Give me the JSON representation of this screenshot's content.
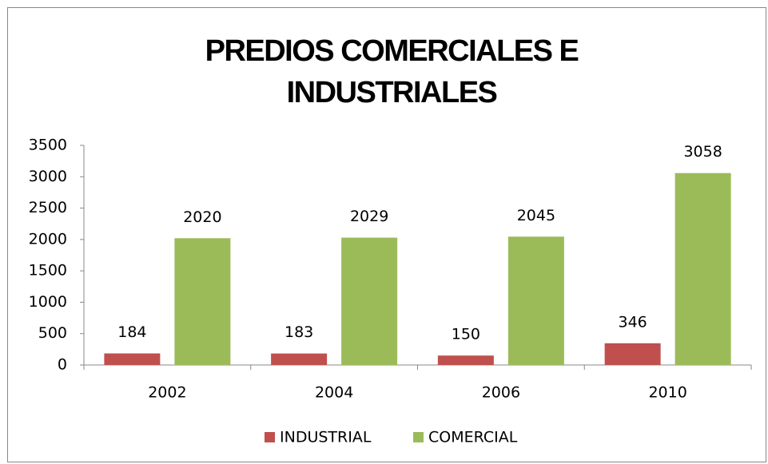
{
  "chart_data": {
    "type": "bar",
    "title": "PREDIOS COMERCIALES E INDUSTRIALES",
    "categories": [
      "2002",
      "2004",
      "2006",
      "2010"
    ],
    "series": [
      {
        "name": "INDUSTRIAL",
        "color": "#c0504d",
        "values": [
          184,
          183,
          150,
          346
        ]
      },
      {
        "name": "COMERCIAL",
        "color": "#9bbb59",
        "values": [
          2020,
          2029,
          2045,
          3058
        ]
      }
    ],
    "ylim": [
      0,
      3500
    ],
    "yticks": [
      0,
      500,
      1000,
      1500,
      2000,
      2500,
      3000,
      3500
    ],
    "grid": false,
    "legend": "bottom"
  }
}
